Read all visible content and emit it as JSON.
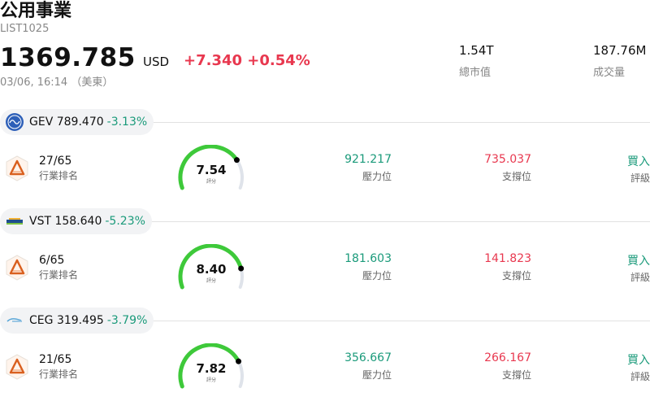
{
  "header": {
    "title": "公用事業",
    "code": "LIST1025",
    "price": "1369.785",
    "currency": "USD",
    "change": "+7.340 +0.54%",
    "timestamp": "03/06, 16:14 （美東）",
    "market_cap_value": "1.54T",
    "market_cap_label": "總市值",
    "volume_value": "187.76M",
    "volume_label": "成交量"
  },
  "labels": {
    "rank": "行業排名",
    "resistance": "壓力位",
    "support": "支撐位",
    "rating": "評級",
    "score": "評分"
  },
  "colors": {
    "up_red": "#e8384f",
    "down_green": "#1a9a7a",
    "gauge_green": "#3ec93a"
  },
  "stocks": [
    {
      "ticker": "GEV",
      "price": "789.470",
      "change": "-3.13%",
      "logo_icon": "ge-globe-icon",
      "rank": "27/65",
      "score": "7.54",
      "score_value": 7.54,
      "resistance": "921.217",
      "support": "735.037",
      "rating": "買入"
    },
    {
      "ticker": "VST",
      "price": "158.640",
      "change": "-5.23%",
      "logo_icon": "vistra-logo-icon",
      "rank": "6/65",
      "score": "8.40",
      "score_value": 8.4,
      "resistance": "181.603",
      "support": "141.823",
      "rating": "買入"
    },
    {
      "ticker": "CEG",
      "price": "319.495",
      "change": "-3.79%",
      "logo_icon": "constellation-logo-icon",
      "rank": "21/65",
      "score": "7.82",
      "score_value": 7.82,
      "resistance": "356.667",
      "support": "266.167",
      "rating": "買入"
    }
  ]
}
